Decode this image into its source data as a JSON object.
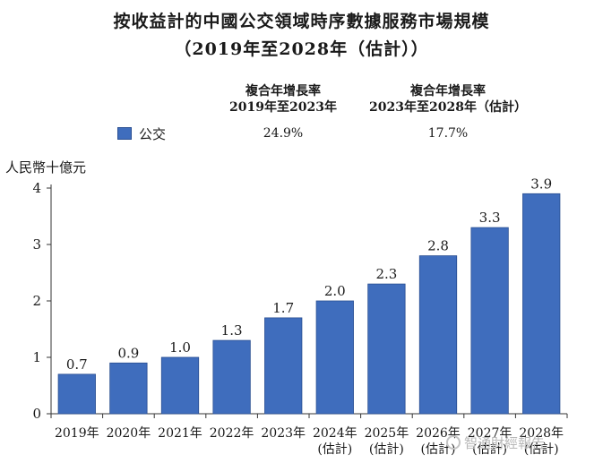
{
  "title_line1": "按收益計的中國公交領域時序數據服務市場規模",
  "title_line2": "（2019年至2028年（估計））",
  "cagr": {
    "col1_line1": "複合年增長率",
    "col1_line2": "2019年至2023年",
    "col2_line1": "複合年增長率",
    "col2_line2": "2023年至2028年（估計）"
  },
  "legend": {
    "label": "公交",
    "color": "#3f6dbd",
    "cagr1": "24.9%",
    "cagr2": "17.7%"
  },
  "watermark": "智通財經報告",
  "chart_data": {
    "type": "bar",
    "ylabel": "人民幣十億元",
    "ylim": [
      0,
      4
    ],
    "yticks": [
      "0",
      "1",
      "2",
      "3",
      "4"
    ],
    "categories": [
      "2019年",
      "2020年",
      "2021年",
      "2022年",
      "2023年",
      "2024年\n(估計)",
      "2025年\n(估計)",
      "2026年\n(估計)",
      "2027年\n(估計)",
      "2028年\n(估計)"
    ],
    "series": [
      {
        "name": "公交",
        "values": [
          0.7,
          0.9,
          1.0,
          1.3,
          1.7,
          2.0,
          2.3,
          2.8,
          3.3,
          3.9
        ],
        "labels": [
          "0.7",
          "0.9",
          "1.0",
          "1.3",
          "1.7",
          "2.0",
          "2.3",
          "2.8",
          "3.3",
          "3.9"
        ]
      }
    ]
  }
}
